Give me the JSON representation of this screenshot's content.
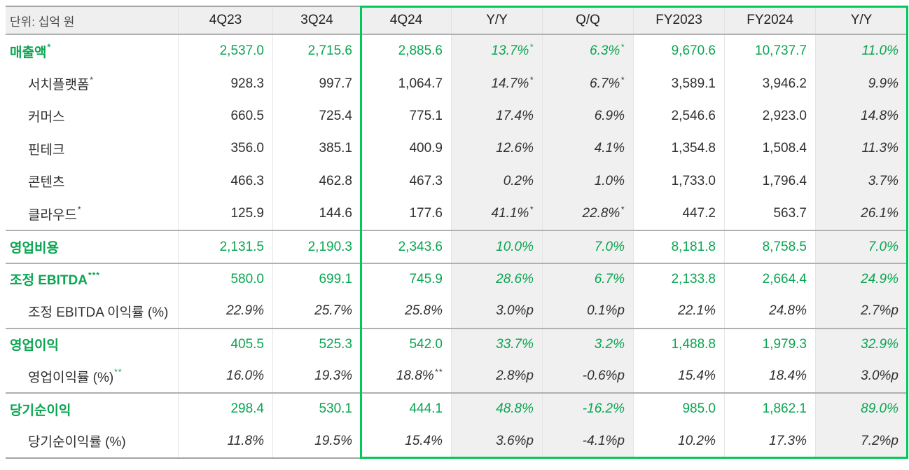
{
  "unit_label": "단위: 십억 원",
  "columns": [
    "4Q23",
    "3Q24",
    "4Q24",
    "Y/Y",
    "Q/Q",
    "FY2023",
    "FY2024",
    "Y/Y"
  ],
  "colors": {
    "green_text": "#0aa551",
    "green_border": "#03c75a",
    "grey_column_bg": "#f0f0f0",
    "header_bg": "#efefef"
  },
  "rows": [
    {
      "type": "main",
      "separator": false,
      "label": "매출액*",
      "values": [
        "2,537.0",
        "2,715.6",
        "2,885.6",
        "13.7%*",
        "6.3%*",
        "9,670.6",
        "10,737.7",
        "11.0%"
      ]
    },
    {
      "type": "sub",
      "separator": false,
      "label": "서치플랫폼*",
      "values": [
        "928.3",
        "997.7",
        "1,064.7",
        "14.7%*",
        "6.7%*",
        "3,589.1",
        "3,946.2",
        "9.9%"
      ]
    },
    {
      "type": "sub",
      "separator": false,
      "label": "커머스",
      "values": [
        "660.5",
        "725.4",
        "775.1",
        "17.4%",
        "6.9%",
        "2,546.6",
        "2,923.0",
        "14.8%"
      ]
    },
    {
      "type": "sub",
      "separator": false,
      "label": "핀테크",
      "values": [
        "356.0",
        "385.1",
        "400.9",
        "12.6%",
        "4.1%",
        "1,354.8",
        "1,508.4",
        "11.3%"
      ]
    },
    {
      "type": "sub",
      "separator": false,
      "label": "콘텐츠",
      "values": [
        "466.3",
        "462.8",
        "467.3",
        "0.2%",
        "1.0%",
        "1,733.0",
        "1,796.4",
        "3.7%"
      ]
    },
    {
      "type": "sub",
      "separator": false,
      "label": "클라우드*",
      "values": [
        "125.9",
        "144.6",
        "177.6",
        "41.1%*",
        "22.8%*",
        "447.2",
        "563.7",
        "26.1%"
      ]
    },
    {
      "type": "main",
      "separator": true,
      "label": "영업비용",
      "values": [
        "2,131.5",
        "2,190.3",
        "2,343.6",
        "10.0%",
        "7.0%",
        "8,181.8",
        "8,758.5",
        "7.0%"
      ]
    },
    {
      "type": "main",
      "separator": true,
      "label": "조정 EBITDA***",
      "values": [
        "580.0",
        "699.1",
        "745.9",
        "28.6%",
        "6.7%",
        "2,133.8",
        "2,664.4",
        "24.9%"
      ]
    },
    {
      "type": "margin",
      "separator": false,
      "label": "조정 EBITDA 이익률 (%)",
      "values": [
        "22.9%",
        "25.7%",
        "25.8%",
        "3.0%p",
        "0.1%p",
        "22.1%",
        "24.8%",
        "2.7%p"
      ]
    },
    {
      "type": "main",
      "separator": true,
      "label": "영업이익",
      "values": [
        "405.5",
        "525.3",
        "542.0",
        "33.7%",
        "3.2%",
        "1,488.8",
        "1,979.3",
        "32.9%"
      ]
    },
    {
      "type": "margin",
      "separator": false,
      "label": "영업이익률 (%)**",
      "values": [
        "16.0%",
        "19.3%",
        "18.8%**",
        "2.8%p",
        "-0.6%p",
        "15.4%",
        "18.4%",
        "3.0%p"
      ]
    },
    {
      "type": "main",
      "separator": true,
      "label": "당기순이익",
      "values": [
        "298.4",
        "530.1",
        "444.1",
        "48.8%",
        "-16.2%",
        "985.0",
        "1,862.1",
        "89.0%"
      ]
    },
    {
      "type": "margin",
      "separator": false,
      "label": "당기순이익률 (%)",
      "values": [
        "11.8%",
        "19.5%",
        "15.4%",
        "3.6%p",
        "-4.1%p",
        "10.2%",
        "17.3%",
        "7.2%p"
      ]
    }
  ]
}
